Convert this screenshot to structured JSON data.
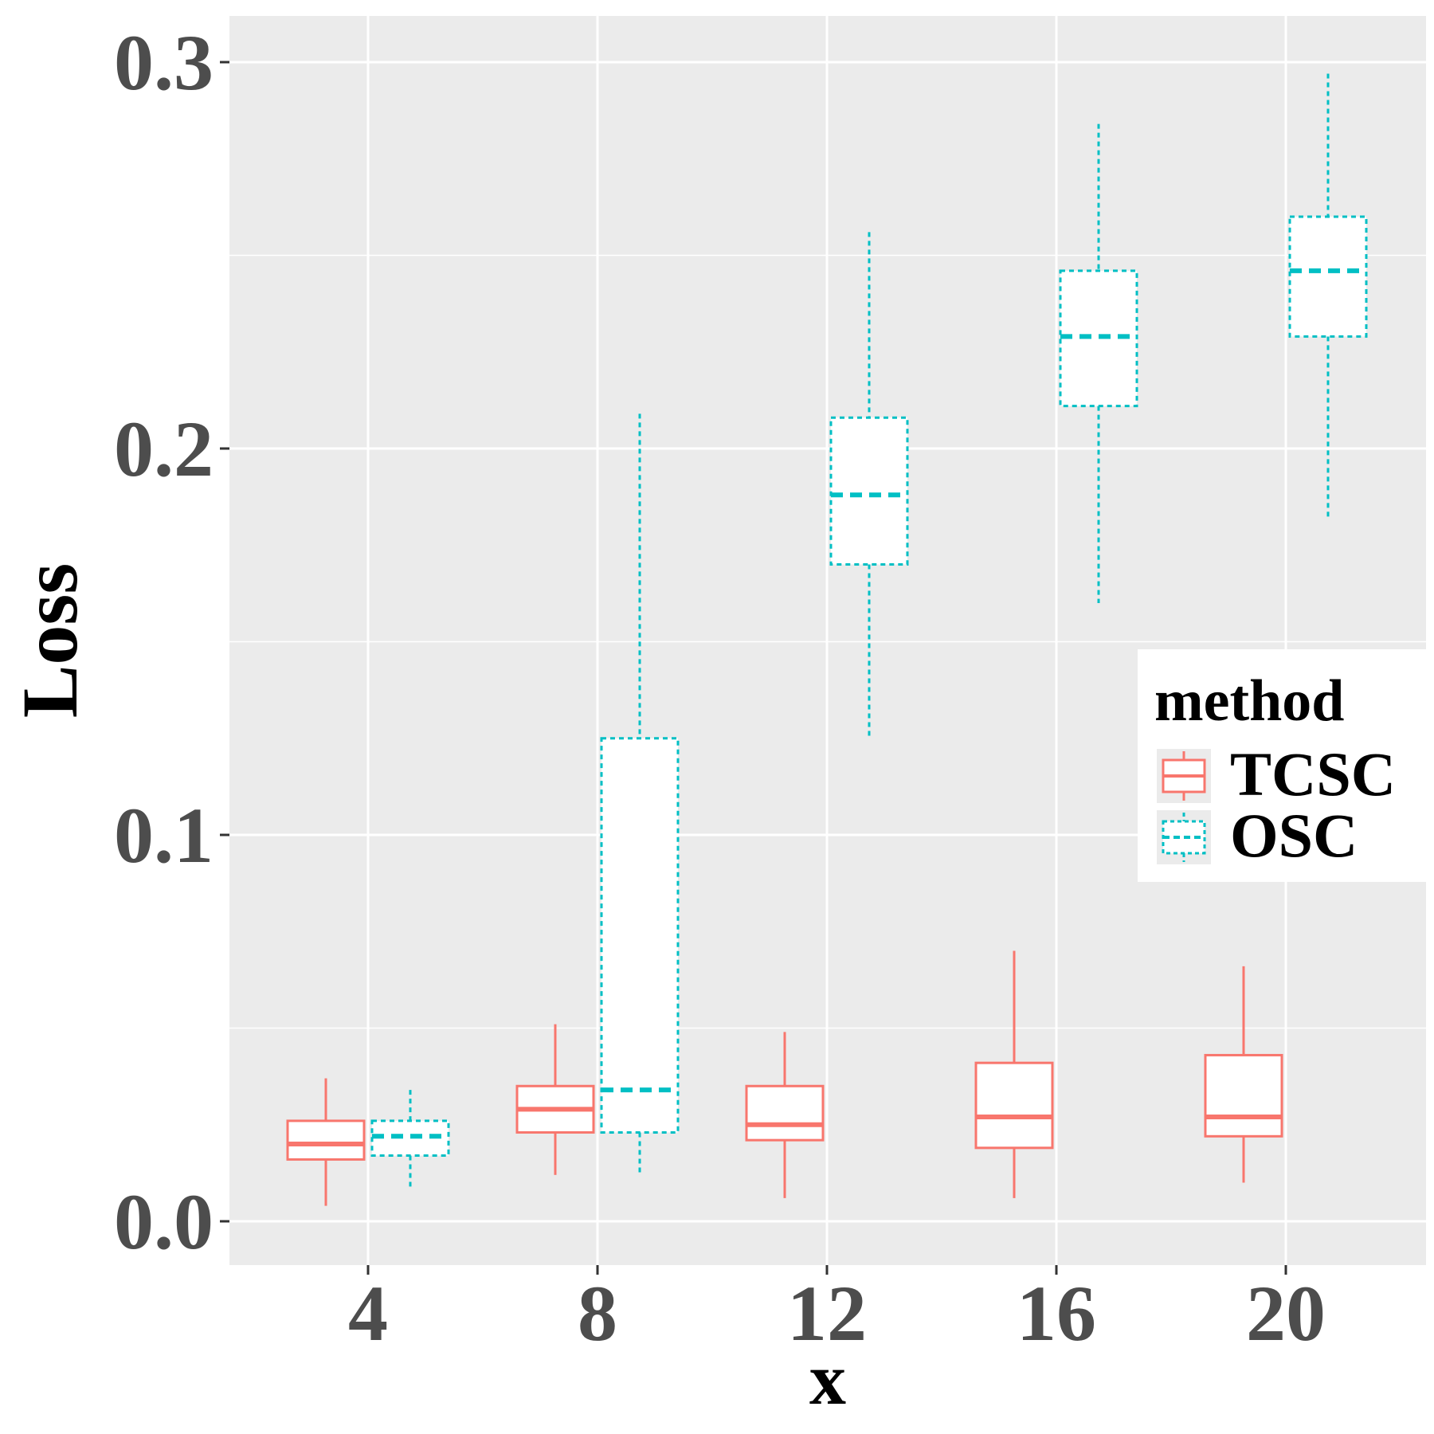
{
  "chart_data": {
    "type": "boxplot",
    "title": "",
    "xlabel": "x",
    "ylabel": "Loss",
    "categories": [
      "4",
      "8",
      "12",
      "16",
      "20"
    ],
    "ylim": [
      -0.01,
      0.312
    ],
    "yticks": [
      "0.0",
      "0.1",
      "0.2",
      "0.3"
    ],
    "ytick_values": [
      0.0,
      0.1,
      0.2,
      0.3
    ],
    "grid": true,
    "legend": {
      "title": "method",
      "position": "right"
    },
    "series": [
      {
        "name": "TCSC",
        "color": "#f8766d",
        "linestyle": "solid",
        "boxes": [
          {
            "min": 0.004,
            "q1": 0.016,
            "median": 0.02,
            "q3": 0.026,
            "max": 0.037
          },
          {
            "min": 0.012,
            "q1": 0.023,
            "median": 0.029,
            "q3": 0.035,
            "max": 0.051
          },
          {
            "min": 0.006,
            "q1": 0.021,
            "median": 0.025,
            "q3": 0.035,
            "max": 0.049
          },
          {
            "min": 0.006,
            "q1": 0.019,
            "median": 0.027,
            "q3": 0.041,
            "max": 0.07
          },
          {
            "min": 0.01,
            "q1": 0.022,
            "median": 0.027,
            "q3": 0.043,
            "max": 0.066
          }
        ]
      },
      {
        "name": "OSC",
        "color": "#00bfc4",
        "linestyle": "dotted",
        "boxes": [
          {
            "min": 0.009,
            "q1": 0.017,
            "median": 0.022,
            "q3": 0.026,
            "max": 0.034
          },
          {
            "min": 0.012,
            "q1": 0.023,
            "median": 0.034,
            "q3": 0.125,
            "max": 0.209
          },
          {
            "min": 0.125,
            "q1": 0.17,
            "median": 0.188,
            "q3": 0.208,
            "max": 0.256
          },
          {
            "min": 0.16,
            "q1": 0.211,
            "median": 0.229,
            "q3": 0.246,
            "max": 0.284
          },
          {
            "min": 0.182,
            "q1": 0.229,
            "median": 0.246,
            "q3": 0.26,
            "max": 0.297
          }
        ]
      }
    ]
  }
}
